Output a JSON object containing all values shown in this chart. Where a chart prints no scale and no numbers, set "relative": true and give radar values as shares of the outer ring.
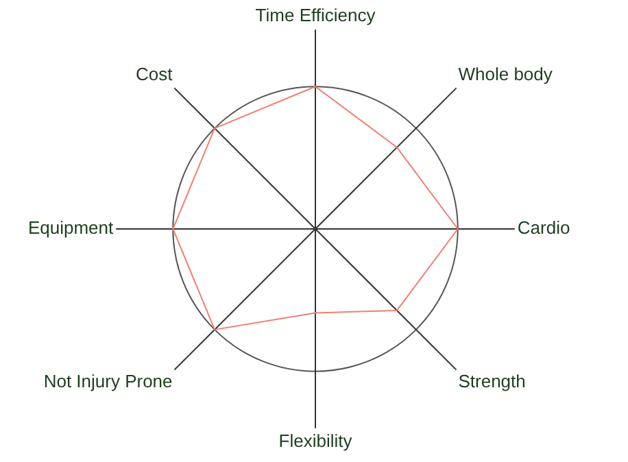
{
  "chart_data": {
    "type": "radar",
    "relative": true,
    "categories": [
      "Time Efficiency",
      "Whole body",
      "Cardio",
      "Strength",
      "Flexibility",
      "Not Injury Prone",
      "Equipment",
      "Cost"
    ],
    "series": [
      {
        "color": "#f07f70",
        "values": [
          1,
          0.81,
          1,
          0.81,
          0.59,
          1,
          1,
          1
        ]
      }
    ],
    "grid": true,
    "legend": false,
    "marker": "none"
  }
}
